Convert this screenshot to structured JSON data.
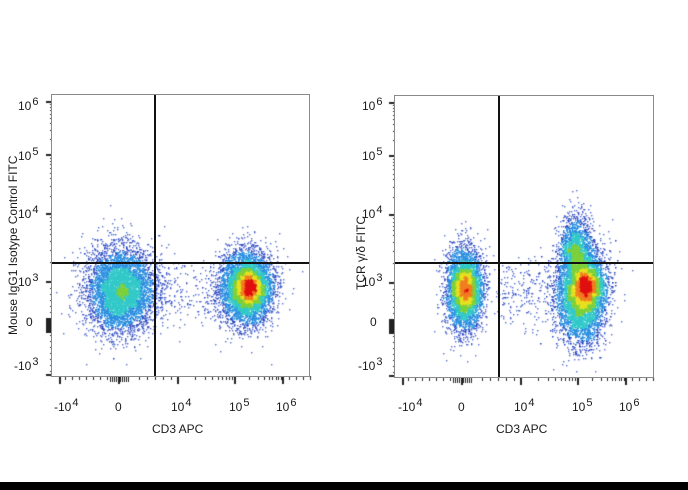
{
  "chart_data": [
    {
      "type": "scatter",
      "subtype": "flow-cytometry-density-dot-plot",
      "title": "",
      "xlabel": "CD3 APC",
      "ylabel": "Mouse IgG1 Isotype Control  FITC",
      "x_scale": "biexponential",
      "y_scale": "biexponential",
      "x_ticks": [
        "-10^4",
        "0",
        "10^4",
        "10^5",
        "10^6"
      ],
      "y_ticks": [
        "-10^3",
        "0",
        "10^3",
        "10^4",
        "10^5",
        "10^6"
      ],
      "gates": {
        "x_threshold_approx": 2500,
        "y_threshold_approx": 1800
      },
      "colormap": [
        "#1f3fbf",
        "#2b8fe0",
        "#32c8c8",
        "#7cd03a",
        "#e8e020",
        "#f08020",
        "#e01010"
      ],
      "populations": [
        {
          "name": "CD3- cluster",
          "x_center_approx": 0,
          "y_center_approx": 700,
          "quadrant": "lower-left",
          "peak_density": "green"
        },
        {
          "name": "CD3+ cluster",
          "x_center_approx": 150000,
          "y_center_approx": 700,
          "quadrant": "lower-right",
          "peak_density": "red"
        }
      ],
      "grid": false,
      "legend": null
    },
    {
      "type": "scatter",
      "subtype": "flow-cytometry-density-dot-plot",
      "title": "",
      "xlabel": "CD3 APC",
      "ylabel": "TCR γ/δ FITC",
      "x_scale": "biexponential",
      "y_scale": "biexponential",
      "x_ticks": [
        "-10^4",
        "0",
        "10^4",
        "10^5",
        "10^6"
      ],
      "y_ticks": [
        "-10^3",
        "0",
        "10^3",
        "10^4",
        "10^5",
        "10^6"
      ],
      "gates": {
        "x_threshold_approx": 2500,
        "y_threshold_approx": 1800
      },
      "colormap": [
        "#1f3fbf",
        "#2b8fe0",
        "#32c8c8",
        "#7cd03a",
        "#e8e020",
        "#f08020",
        "#e01010"
      ],
      "populations": [
        {
          "name": "CD3- cluster",
          "x_center_approx": 0,
          "y_center_approx": 700,
          "quadrant": "lower-left",
          "peak_density": "yellow"
        },
        {
          "name": "CD3+ TCRγδ- cluster",
          "x_center_approx": 130000,
          "y_center_approx": 700,
          "quadrant": "lower-right",
          "peak_density": "red"
        },
        {
          "name": "CD3+ TCRγδ+ cluster",
          "x_center_approx": 110000,
          "y_center_approx": 3500,
          "quadrant": "upper-right",
          "peak_density": "green"
        }
      ],
      "grid": false,
      "legend": null
    }
  ],
  "left": {
    "ylabel": "Mouse IgG1 Isotype Control  FITC",
    "xlabel": "CD3 APC",
    "y_ticks": [
      {
        "base": "10",
        "exp": "6"
      },
      {
        "base": "10",
        "exp": "5"
      },
      {
        "base": "10",
        "exp": "4"
      },
      {
        "base": "10",
        "exp": "3"
      },
      {
        "base": "0",
        "exp": ""
      },
      {
        "base": "-10",
        "exp": "3"
      }
    ],
    "x_ticks": [
      {
        "base": "-10",
        "exp": "4"
      },
      {
        "base": "0",
        "exp": ""
      },
      {
        "base": "10",
        "exp": "4"
      },
      {
        "base": "10",
        "exp": "5"
      },
      {
        "base": "10",
        "exp": "6"
      }
    ]
  },
  "right": {
    "ylabel": "TCR γ/δ FITC",
    "xlabel": "CD3 APC",
    "y_ticks": [
      {
        "base": "10",
        "exp": "6"
      },
      {
        "base": "10",
        "exp": "5"
      },
      {
        "base": "10",
        "exp": "4"
      },
      {
        "base": "10",
        "exp": "3"
      },
      {
        "base": "0",
        "exp": ""
      },
      {
        "base": "-10",
        "exp": "3"
      }
    ],
    "x_ticks": [
      {
        "base": "-10",
        "exp": "4"
      },
      {
        "base": "0",
        "exp": ""
      },
      {
        "base": "10",
        "exp": "4"
      },
      {
        "base": "10",
        "exp": "5"
      },
      {
        "base": "10",
        "exp": "6"
      }
    ]
  }
}
